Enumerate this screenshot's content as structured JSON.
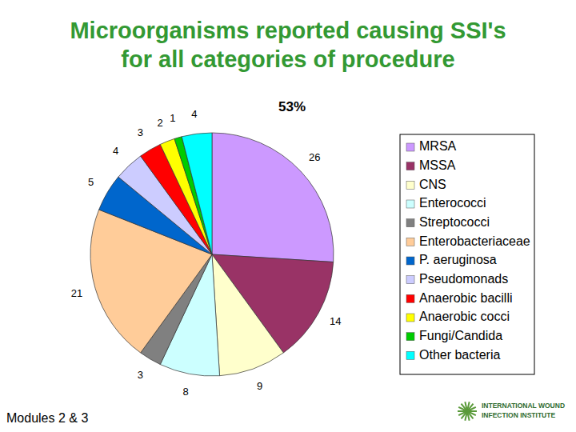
{
  "chart_data": {
    "type": "pie",
    "title": "Microorganisms reported causing SSI's for all categories of procedure",
    "categories": [
      "MRSA",
      "MSSA",
      "CNS",
      "Enterococci",
      "Streptococci",
      "Enterobacteriaceae",
      "P. aeruginosa",
      "Pseudomonads",
      "Anaerobic bacilli",
      "Anaerobic cocci",
      "Fungi/Candida",
      "Other bacteria"
    ],
    "values": [
      26,
      14,
      9,
      8,
      3,
      21,
      5,
      4,
      3,
      2,
      1,
      4
    ],
    "colors": [
      "#cc99ff",
      "#993366",
      "#ffffcc",
      "#ccffff",
      "#808080",
      "#ffcc99",
      "#0066cc",
      "#ccccff",
      "#ff0000",
      "#ffff00",
      "#00cc00",
      "#00ffff"
    ],
    "data_labels": true,
    "legend": "right",
    "annotations": [
      {
        "text": "53%"
      },
      {
        "text": "Modules 2 & 3"
      },
      {
        "text": "INTERNATIONAL WOUND"
      },
      {
        "text": "INFECTION INSTITUTE"
      }
    ]
  }
}
